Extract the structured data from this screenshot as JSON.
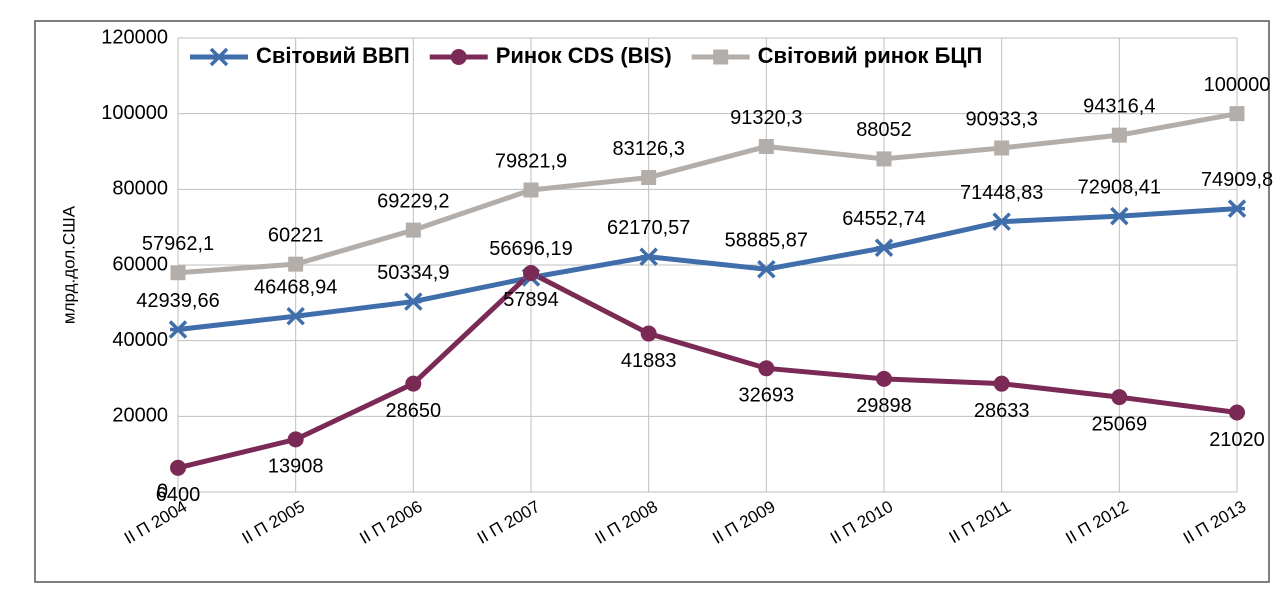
{
  "chart_data": {
    "type": "line",
    "y_label": "млрд.дол.США",
    "categories": [
      "II П 2004",
      "II П 2005",
      "II П 2006",
      "II П 2007",
      "II П 2008",
      "II П 2009",
      "II П 2010",
      "II П 2011",
      "II П 2012",
      "II П 2013"
    ],
    "series": [
      {
        "name": "Світовий ВВП",
        "color": "#3f6eab",
        "marker": "star",
        "values": [
          42939.66,
          46468.94,
          50334.9,
          56696.19,
          62170.57,
          58885.87,
          64552.74,
          71448.83,
          72908.41,
          74909.8
        ],
        "value_labels": [
          "42939,66",
          "46468,94",
          "50334,9",
          "56696,19",
          "62170,57",
          "58885,87",
          "64552,74",
          "71448,83",
          "72908,41",
          "74909,8"
        ]
      },
      {
        "name": "Ринок CDS (BIS)",
        "color": "#7a2a55",
        "marker": "circle",
        "values": [
          6400,
          13908,
          28650,
          57894,
          41883,
          32693,
          29898,
          28633,
          25069,
          21020
        ]
      },
      {
        "name": "Світовий ринок БЦП",
        "color": "#b3aea9",
        "marker": "square",
        "values": [
          57962.1,
          60221,
          69229.2,
          79821.9,
          83126.3,
          91320.3,
          88052,
          90933.3,
          94316.4,
          100000
        ],
        "value_labels": [
          "57962,1",
          "60221",
          "69229,2",
          "79821,9",
          "83126,3",
          "91320,3",
          "88052",
          "90933,3",
          "94316,4",
          "100000"
        ]
      }
    ],
    "ylim": [
      0,
      120000
    ],
    "yticks": [
      0,
      20000,
      40000,
      60000,
      80000,
      100000,
      120000
    ],
    "grid": true,
    "legend": "top"
  }
}
